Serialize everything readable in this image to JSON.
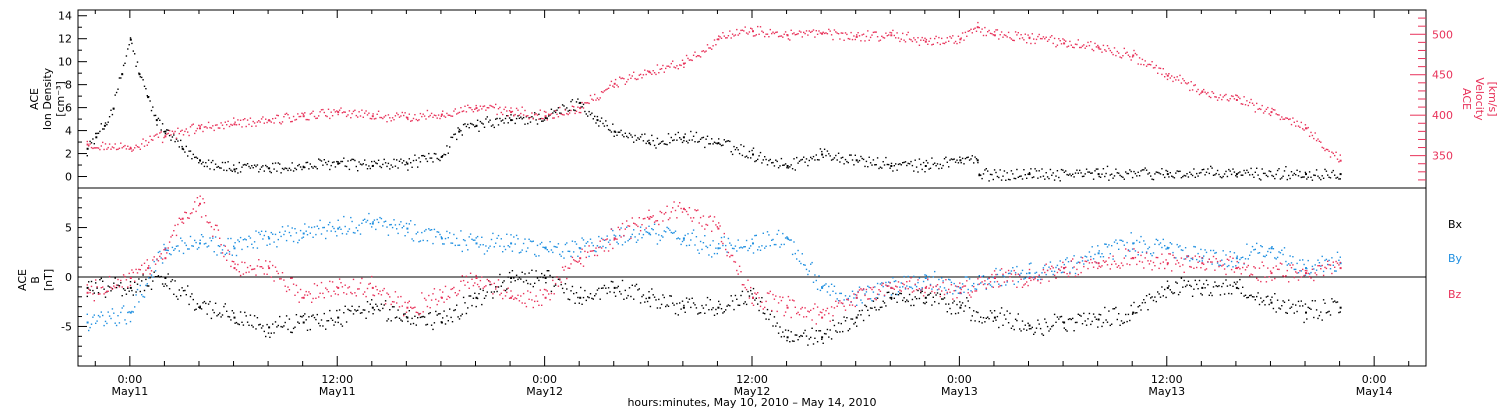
{
  "colors": {
    "black": "#000000",
    "red": "#e8325a",
    "blue": "#1f8fe0",
    "white": "#ffffff"
  },
  "chart_data": [
    {
      "type": "scatter",
      "panel": "top",
      "ylabel_left": [
        "ACE",
        "Ion Density",
        "[cm⁻³]"
      ],
      "ylabel_right": [
        "ACE",
        "Velocity",
        "[km/s]"
      ],
      "ylim_left": [
        -1,
        14.5
      ],
      "ylim_right": [
        310,
        530
      ],
      "yticks_left": [
        "0",
        "2",
        "4",
        "6",
        "8",
        "10",
        "12",
        "14"
      ],
      "yticks_right": [
        "350",
        "400",
        "450",
        "500"
      ],
      "series": [
        {
          "color": "#000000",
          "axis": "left",
          "x": [
            -2.5,
            -2,
            -1.5,
            -1,
            -0.5,
            0,
            0.5,
            1,
            1.5,
            2,
            3,
            4,
            6,
            8,
            10,
            12,
            14,
            16,
            18,
            19,
            20,
            22,
            24,
            26,
            27,
            28,
            30,
            32,
            34,
            36,
            38,
            40,
            42,
            44,
            46,
            48,
            49,
            49.1,
            52,
            56,
            60,
            64,
            68,
            70
          ],
          "y": [
            2.5,
            3.5,
            4.5,
            6,
            9,
            12,
            9,
            7,
            5,
            4,
            2.5,
            1.5,
            0.7,
            0.8,
            0.9,
            1.2,
            1,
            1.2,
            1.8,
            4,
            4.5,
            5,
            5.2,
            6.5,
            5,
            4,
            3,
            3.5,
            3,
            2,
            1,
            2,
            1.5,
            1,
            1,
            1.5,
            1.5,
            0.2,
            0.3,
            0.3,
            0.3,
            0.3,
            0.3,
            0.3
          ]
        },
        {
          "color": "#e8325a",
          "axis": "right",
          "x": [
            -2.5,
            0,
            2,
            4,
            6,
            8,
            10,
            12,
            14,
            16,
            18,
            20,
            22,
            24,
            26,
            28,
            30,
            32,
            34,
            36,
            38,
            40,
            42,
            44,
            46,
            48,
            49,
            50,
            52,
            54,
            56,
            58,
            60,
            62,
            64,
            66,
            68,
            70
          ],
          "y": [
            365,
            360,
            375,
            385,
            390,
            395,
            400,
            405,
            400,
            398,
            402,
            410,
            405,
            400,
            410,
            440,
            455,
            465,
            495,
            505,
            500,
            502,
            498,
            500,
            492,
            495,
            510,
            500,
            497,
            490,
            485,
            475,
            450,
            430,
            420,
            405,
            385,
            345
          ]
        }
      ]
    },
    {
      "type": "scatter",
      "panel": "bottom",
      "ylabel": [
        "ACE",
        "B",
        "[nT]"
      ],
      "ylim": [
        -9,
        9
      ],
      "yticks": [
        "-5",
        "0",
        "5"
      ],
      "legend": [
        "Bx",
        "By",
        "Bz"
      ],
      "legend_placement": "right",
      "series": [
        {
          "name": "Bx",
          "color": "#000000",
          "x": [
            -2.5,
            0,
            2,
            4,
            6,
            8,
            10,
            12,
            14,
            16,
            18,
            20,
            22,
            24,
            26,
            28,
            30,
            32,
            34,
            36,
            38,
            40,
            42,
            44,
            46,
            48,
            50,
            52,
            54,
            56,
            58,
            60,
            62,
            64,
            66,
            68,
            70
          ],
          "y": [
            -1,
            -1,
            0,
            -3,
            -4,
            -5,
            -4.5,
            -4,
            -3,
            -4,
            -4.5,
            -2,
            0,
            0,
            -2,
            -1,
            -2,
            -3,
            -3,
            -2,
            -6,
            -6,
            -4,
            -2,
            -2,
            -3,
            -4,
            -4.8,
            -4.5,
            -4.2,
            -3.5,
            -1,
            -1,
            -1,
            -2.5,
            -3.5,
            -3
          ]
        },
        {
          "name": "By",
          "color": "#1f8fe0",
          "x": [
            -2.5,
            0,
            2,
            4,
            6,
            8,
            10,
            12,
            14,
            16,
            18,
            20,
            22,
            24,
            26,
            28,
            30,
            32,
            34,
            36,
            38,
            40,
            42,
            44,
            46,
            48,
            50,
            52,
            54,
            56,
            58,
            60,
            62,
            64,
            66,
            68,
            70
          ],
          "y": [
            -4.5,
            -3.5,
            3,
            3.5,
            3,
            4,
            4.5,
            5,
            5.5,
            5,
            4,
            3.5,
            3.5,
            3,
            3,
            4,
            4.5,
            4,
            3,
            3.5,
            4,
            -1,
            -2,
            -1,
            0,
            -1,
            0,
            0.5,
            1,
            2.5,
            3.5,
            3,
            2,
            2,
            3,
            1,
            1.5
          ]
        },
        {
          "name": "Bz",
          "color": "#e8325a",
          "x": [
            -2.5,
            0,
            1,
            2,
            3,
            4,
            6,
            8,
            10,
            12,
            14,
            16,
            18,
            20,
            22,
            24,
            26,
            28,
            30,
            32,
            34,
            36,
            38,
            40,
            42,
            44,
            46,
            48,
            50,
            52,
            54,
            56,
            58,
            60,
            62,
            64,
            66,
            68,
            70
          ],
          "y": [
            -1.5,
            0,
            1,
            2,
            6,
            7.5,
            1,
            1,
            -2,
            -1,
            -1,
            -3,
            -2,
            0,
            -2,
            -2,
            2,
            4,
            6,
            7,
            5,
            -2,
            -3,
            -4,
            -2,
            -1,
            -1,
            -1.5,
            0,
            0,
            1,
            1.5,
            2,
            1.5,
            1.5,
            1,
            0.5,
            0.5,
            1
          ]
        }
      ]
    }
  ],
  "x_axis": {
    "xlim": [
      -3,
      75
    ],
    "ticks": [
      {
        "time": "0:00",
        "date": "May11"
      },
      {
        "time": "12:00",
        "date": "May11"
      },
      {
        "time": "0:00",
        "date": "May12"
      },
      {
        "time": "12:00",
        "date": "May12"
      },
      {
        "time": "0:00",
        "date": "May13"
      },
      {
        "time": "12:00",
        "date": "May13"
      },
      {
        "time": "0:00",
        "date": "May14"
      }
    ],
    "tick_hours": [
      0,
      12,
      24,
      36,
      48,
      60,
      72
    ],
    "xlabel": "hours:minutes, May 10, 2010 – May 14, 2010"
  }
}
